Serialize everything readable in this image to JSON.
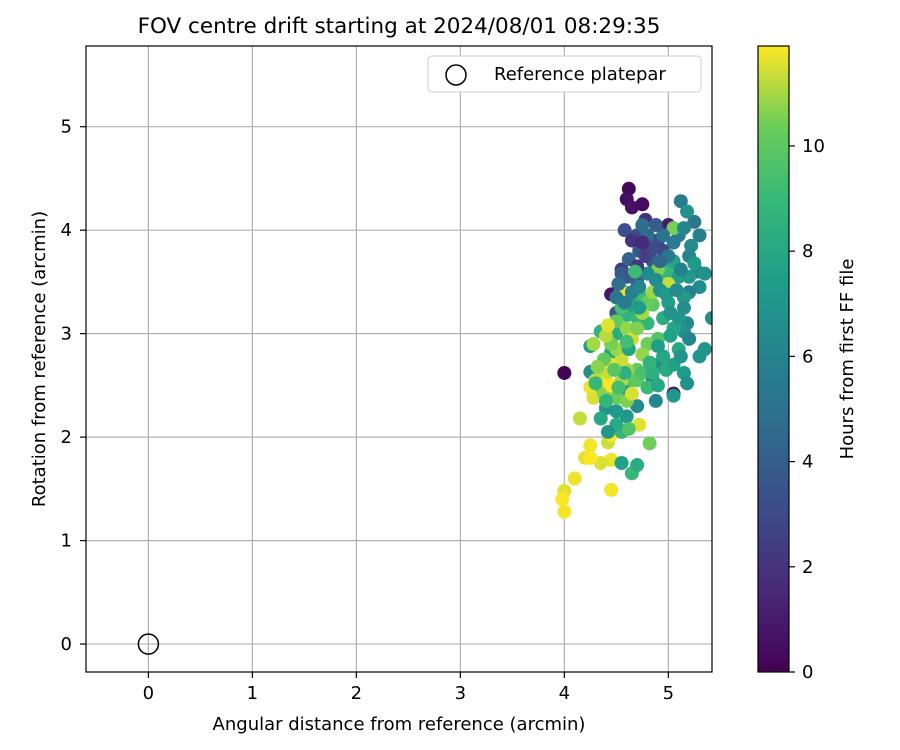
{
  "chart_data": {
    "type": "scatter",
    "title": "FOV centre drift starting at 2024/08/01 08:29:35",
    "xlabel": "Angular distance from reference (arcmin)",
    "ylabel": "Rotation from reference (arcmin)",
    "xlim": [
      -0.6,
      5.42
    ],
    "ylim": [
      -0.27,
      5.78
    ],
    "xticks": [
      0,
      1,
      2,
      3,
      4,
      5
    ],
    "yticks": [
      0,
      1,
      2,
      3,
      4,
      5
    ],
    "grid": true,
    "legend": {
      "position": "top-right",
      "entries": [
        "Reference platepar"
      ]
    },
    "colorbar": {
      "label": "Hours from first FF file",
      "range": [
        0,
        11.9
      ],
      "ticks": [
        0,
        2,
        4,
        6,
        8,
        10
      ],
      "colormap": "viridis"
    },
    "reference_point": {
      "x": 0,
      "y": 0,
      "label": "Reference platepar"
    },
    "points": [
      [
        4.0,
        2.62,
        0.1
      ],
      [
        4.62,
        4.4,
        0.3
      ],
      [
        4.6,
        4.3,
        0.5
      ],
      [
        4.65,
        4.22,
        0.6
      ],
      [
        4.75,
        4.25,
        0.4
      ],
      [
        4.78,
        4.1,
        1.8
      ],
      [
        5.0,
        4.05,
        1.0
      ],
      [
        4.45,
        3.38,
        0.8
      ],
      [
        5.05,
        2.42,
        0.5
      ],
      [
        4.55,
        3.62,
        2.5
      ],
      [
        4.58,
        4.0,
        3.3
      ],
      [
        4.7,
        3.95,
        3.0
      ],
      [
        4.8,
        3.85,
        3.5
      ],
      [
        4.9,
        3.9,
        3.2
      ],
      [
        4.95,
        3.8,
        2.8
      ],
      [
        4.85,
        3.7,
        4.0
      ],
      [
        4.6,
        3.55,
        3.6
      ],
      [
        4.5,
        3.2,
        3.8
      ],
      [
        4.7,
        3.5,
        4.2
      ],
      [
        4.95,
        3.65,
        4.5
      ],
      [
        4.75,
        4.05,
        4.8
      ],
      [
        5.12,
        4.28,
        5.5
      ],
      [
        5.25,
        4.08,
        5.3
      ],
      [
        5.1,
        3.95,
        5.7
      ],
      [
        5.2,
        3.75,
        6.0
      ],
      [
        5.28,
        3.6,
        6.2
      ],
      [
        5.3,
        3.45,
        6.5
      ],
      [
        5.35,
        3.58,
        6.8
      ],
      [
        5.2,
        3.4,
        5.9
      ],
      [
        5.42,
        3.15,
        6.6
      ],
      [
        5.18,
        3.1,
        6.3
      ],
      [
        5.15,
        3.02,
        6.8
      ],
      [
        5.2,
        2.95,
        6.1
      ],
      [
        5.3,
        2.78,
        7.0
      ],
      [
        5.35,
        2.85,
        6.9
      ],
      [
        5.15,
        2.62,
        7.2
      ],
      [
        5.18,
        2.52,
        6.7
      ],
      [
        5.05,
        2.4,
        7.0
      ],
      [
        4.9,
        2.7,
        6.5
      ],
      [
        4.85,
        2.55,
        6.0
      ],
      [
        4.88,
        2.35,
        6.2
      ],
      [
        4.7,
        2.3,
        6.4
      ],
      [
        4.6,
        2.2,
        7.1
      ],
      [
        4.6,
        2.45,
        7.4
      ],
      [
        4.5,
        2.25,
        7.3
      ],
      [
        4.4,
        2.28,
        6.9
      ],
      [
        4.35,
        2.18,
        8.0
      ],
      [
        4.3,
        2.45,
        7.0
      ],
      [
        4.25,
        2.63,
        6.6
      ],
      [
        4.25,
        2.88,
        7.5
      ],
      [
        4.35,
        3.02,
        8.7
      ],
      [
        4.45,
        2.82,
        7.9
      ],
      [
        4.5,
        3.0,
        8.2
      ],
      [
        4.55,
        3.42,
        8.4
      ],
      [
        4.6,
        3.18,
        8.6
      ],
      [
        4.65,
        3.28,
        7.7
      ],
      [
        4.75,
        3.35,
        9.2
      ],
      [
        4.7,
        3.15,
        9.0
      ],
      [
        4.8,
        3.1,
        8.8
      ],
      [
        4.85,
        3.28,
        10.0
      ],
      [
        4.9,
        3.45,
        9.4
      ],
      [
        4.95,
        3.55,
        9.6
      ],
      [
        5.0,
        3.6,
        8.9
      ],
      [
        5.05,
        3.7,
        7.8
      ],
      [
        5.1,
        3.55,
        7.4
      ],
      [
        5.15,
        3.35,
        7.3
      ],
      [
        5.0,
        3.3,
        7.6
      ],
      [
        4.95,
        3.15,
        8.3
      ],
      [
        5.05,
        3.05,
        7.9
      ],
      [
        5.1,
        2.85,
        8.1
      ],
      [
        4.9,
        2.95,
        9.7
      ],
      [
        4.8,
        2.9,
        10.4
      ],
      [
        4.75,
        2.8,
        10.8
      ],
      [
        4.7,
        2.65,
        10.2
      ],
      [
        4.65,
        2.55,
        9.8
      ],
      [
        4.6,
        2.65,
        11.0
      ],
      [
        4.55,
        2.75,
        11.4
      ],
      [
        4.5,
        2.85,
        10.9
      ],
      [
        4.45,
        2.7,
        11.6
      ],
      [
        4.4,
        2.6,
        11.3
      ],
      [
        4.35,
        2.52,
        11.8
      ],
      [
        4.3,
        2.55,
        11.2
      ],
      [
        4.25,
        2.48,
        11.7
      ],
      [
        4.28,
        2.38,
        11.5
      ],
      [
        4.38,
        2.42,
        10.7
      ],
      [
        4.45,
        2.5,
        11.9
      ],
      [
        4.5,
        2.38,
        10.3
      ],
      [
        4.55,
        2.55,
        11.1
      ],
      [
        4.6,
        2.35,
        10.6
      ],
      [
        4.65,
        2.42,
        11.5
      ],
      [
        4.7,
        2.55,
        10.0
      ],
      [
        4.75,
        2.62,
        9.5
      ],
      [
        4.8,
        2.48,
        9.1
      ],
      [
        4.85,
        2.62,
        8.5
      ],
      [
        4.9,
        2.5,
        8.0
      ],
      [
        4.45,
        2.9,
        10.5
      ],
      [
        4.4,
        2.98,
        11.2
      ],
      [
        4.5,
        3.12,
        10.1
      ],
      [
        4.55,
        3.25,
        9.3
      ],
      [
        4.6,
        3.05,
        10.8
      ],
      [
        4.65,
        2.95,
        11.4
      ],
      [
        4.7,
        3.05,
        10.6
      ],
      [
        4.75,
        3.2,
        11.0
      ],
      [
        4.8,
        3.3,
        10.2
      ],
      [
        4.55,
        3.4,
        11.8
      ],
      [
        4.85,
        3.4,
        10.9
      ],
      [
        4.9,
        3.62,
        10.6
      ],
      [
        5.0,
        3.48,
        11.3
      ],
      [
        5.05,
        4.02,
        10.5
      ],
      [
        4.72,
        2.12,
        11.6
      ],
      [
        4.42,
        1.95,
        11.4
      ],
      [
        4.45,
        2.02,
        11.9
      ],
      [
        4.45,
        1.78,
        11.7
      ],
      [
        4.35,
        1.75,
        11.5
      ],
      [
        4.25,
        1.92,
        11.8
      ],
      [
        4.2,
        1.8,
        11.6
      ],
      [
        4.25,
        1.8,
        11.9
      ],
      [
        4.15,
        2.18,
        11.3
      ],
      [
        4.1,
        1.6,
        11.7
      ],
      [
        4.0,
        1.48,
        11.6
      ],
      [
        3.98,
        1.4,
        11.9
      ],
      [
        4.0,
        1.28,
        11.8
      ],
      [
        4.45,
        1.49,
        11.8
      ],
      [
        4.55,
        1.75,
        7.6
      ],
      [
        4.65,
        1.65,
        9.0
      ],
      [
        4.7,
        1.73,
        8.3
      ],
      [
        4.82,
        1.94,
        10.4
      ],
      [
        4.55,
        2.05,
        8.9
      ],
      [
        4.62,
        2.08,
        9.7
      ],
      [
        4.5,
        2.12,
        8.1
      ],
      [
        4.42,
        2.05,
        7.1
      ],
      [
        4.4,
        2.35,
        8.8
      ],
      [
        4.3,
        2.52,
        9.0
      ],
      [
        4.95,
        2.78,
        7.9
      ],
      [
        5.02,
        2.98,
        7.6
      ],
      [
        5.1,
        3.15,
        7.0
      ],
      [
        5.15,
        3.25,
        6.6
      ],
      [
        5.2,
        3.55,
        7.1
      ],
      [
        5.25,
        3.68,
        7.2
      ],
      [
        5.22,
        3.85,
        6.4
      ],
      [
        5.3,
        3.95,
        5.8
      ],
      [
        5.18,
        4.18,
        6.8
      ],
      [
        5.15,
        4.02,
        6.2
      ],
      [
        5.05,
        3.88,
        5.5
      ],
      [
        4.95,
        3.95,
        5.1
      ],
      [
        4.88,
        4.05,
        3.9
      ],
      [
        4.8,
        3.95,
        4.6
      ],
      [
        4.72,
        3.8,
        3.7
      ],
      [
        4.62,
        3.72,
        4.3
      ],
      [
        4.55,
        3.58,
        3.9
      ],
      [
        4.52,
        3.48,
        4.8
      ],
      [
        4.5,
        3.35,
        5.2
      ],
      [
        4.58,
        3.3,
        5.6
      ],
      [
        4.65,
        3.4,
        5.9
      ],
      [
        4.72,
        3.45,
        6.1
      ],
      [
        4.8,
        3.58,
        6.3
      ],
      [
        4.88,
        3.52,
        6.5
      ],
      [
        4.92,
        3.42,
        6.8
      ],
      [
        4.98,
        3.38,
        7.2
      ],
      [
        5.02,
        3.2,
        6.9
      ],
      [
        5.08,
        3.42,
        6.4
      ],
      [
        5.12,
        3.62,
        5.9
      ],
      [
        5.0,
        3.75,
        5.4
      ],
      [
        4.92,
        3.7,
        4.4
      ],
      [
        4.85,
        3.82,
        3.1
      ],
      [
        4.78,
        3.75,
        2.6
      ],
      [
        4.7,
        3.65,
        2.2
      ],
      [
        4.65,
        3.9,
        2.0
      ],
      [
        4.75,
        3.88,
        1.6
      ],
      [
        4.68,
        3.6,
        9.1
      ],
      [
        4.72,
        3.25,
        7.4
      ],
      [
        4.62,
        2.85,
        7.8
      ],
      [
        4.58,
        2.62,
        8.5
      ],
      [
        4.52,
        2.48,
        9.4
      ],
      [
        4.48,
        2.65,
        9.9
      ],
      [
        4.38,
        2.75,
        10.1
      ],
      [
        4.32,
        2.68,
        10.7
      ],
      [
        4.28,
        2.9,
        11.0
      ],
      [
        4.42,
        3.08,
        11.6
      ],
      [
        4.6,
        2.92,
        9.3
      ],
      [
        4.82,
        2.72,
        8.7
      ],
      [
        4.9,
        2.88,
        7.5
      ],
      [
        4.98,
        2.65,
        8.2
      ],
      [
        5.05,
        2.7,
        7.7
      ],
      [
        5.12,
        2.78,
        6.9
      ]
    ]
  }
}
